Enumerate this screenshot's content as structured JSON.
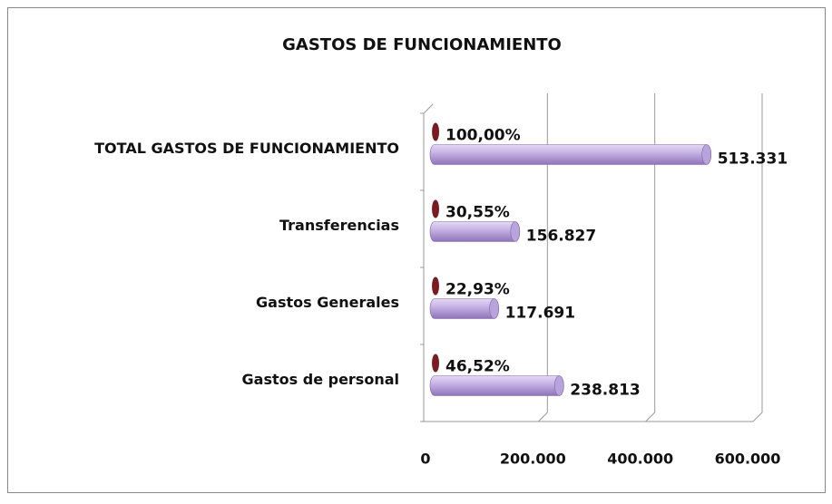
{
  "chart_data": {
    "type": "bar",
    "orientation": "horizontal",
    "title": "GASTOS DE FUNCIONAMIENTO",
    "categories": [
      "TOTAL GASTOS DE FUNCIONAMIENTO",
      "Transferencias",
      "Gastos Generales",
      "Gastos de personal"
    ],
    "series": [
      {
        "color": "#b9a3dc",
        "values": [
          513331,
          156827,
          117691,
          238813
        ],
        "value_labels": [
          "513.331",
          "156.827",
          "117.691",
          "238.813"
        ]
      },
      {
        "color": "#7a1b22",
        "values": [
          100,
          30.55,
          22.93,
          46.52
        ],
        "value_labels": [
          "100,00%",
          "30,55%",
          "22,93%",
          "46,52%"
        ]
      }
    ],
    "xlim": [
      0,
      600000
    ],
    "xticks": [
      0,
      {
        "value": 200000,
        "label": "200.000"
      },
      {
        "value": 400000,
        "label": "400.000"
      },
      {
        "value": 600000,
        "label": "600.000"
      }
    ],
    "grid": true
  }
}
